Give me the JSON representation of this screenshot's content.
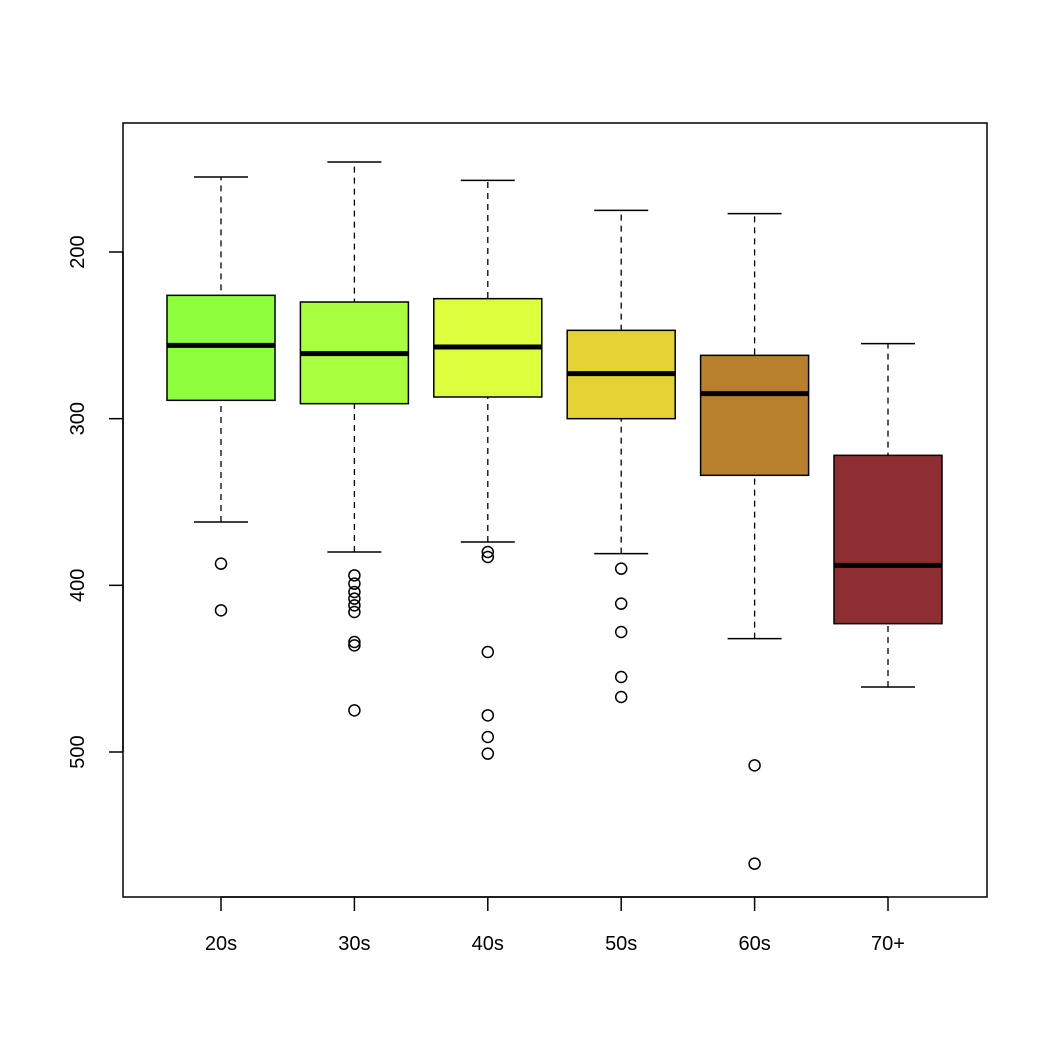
{
  "chart_data": {
    "type": "boxplot",
    "title": "",
    "xlabel": "",
    "ylabel": "",
    "y_axis_reversed": true,
    "ylim": [
      140,
      580
    ],
    "y_ticks": [
      200,
      300,
      400,
      500
    ],
    "y_tick_labels": [
      "200",
      "300",
      "400",
      "500"
    ],
    "categories": [
      "20s",
      "30s",
      "40s",
      "50s",
      "60s",
      "70+"
    ],
    "boxes": [
      {
        "category": "20s",
        "color": "#8EFF3C",
        "whisker_low": 155,
        "q1": 226,
        "median": 256,
        "q3": 289,
        "whisker_high": 362,
        "outliers": [
          387,
          415
        ]
      },
      {
        "category": "30s",
        "color": "#A8FF3E",
        "whisker_low": 146,
        "q1": 230,
        "median": 261,
        "q3": 291,
        "whisker_high": 380,
        "outliers": [
          394,
          399,
          404,
          408,
          412,
          416,
          434,
          436,
          475
        ]
      },
      {
        "category": "40s",
        "color": "#DBFF3C",
        "whisker_low": 157,
        "q1": 228,
        "median": 257,
        "q3": 287,
        "whisker_high": 374,
        "outliers": [
          380,
          383,
          440,
          478,
          491,
          501
        ]
      },
      {
        "category": "50s",
        "color": "#E5D334",
        "whisker_low": 175,
        "q1": 247,
        "median": 273,
        "q3": 300,
        "whisker_high": 381,
        "outliers": [
          390,
          411,
          428,
          455,
          467
        ]
      },
      {
        "category": "60s",
        "color": "#B8802C",
        "whisker_low": 177,
        "q1": 262,
        "median": 285,
        "q3": 334,
        "whisker_high": 432,
        "outliers": [
          508,
          567
        ]
      },
      {
        "category": "70+",
        "color": "#8E2E32",
        "whisker_low": 255,
        "q1": 322,
        "median": 388,
        "q3": 423,
        "whisker_high": 461,
        "outliers": []
      }
    ]
  }
}
